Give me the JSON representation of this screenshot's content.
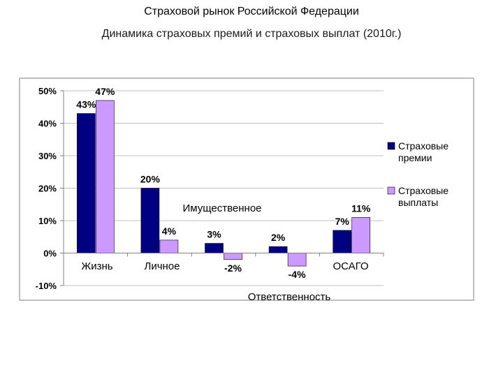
{
  "header": {
    "title": "Страховой рынок Российской Федерации",
    "subtitle": "Динамика страховых премий и страховых выплат (2010г.)"
  },
  "colors": {
    "premiums": "#000080",
    "payouts": "#cc99ff",
    "grid": "#c0c0c0",
    "axis": "#808080"
  },
  "chart_data": {
    "type": "bar",
    "categories": [
      "Жизнь",
      "Личное",
      "Имущественное",
      "Ответственность",
      "ОСАГО"
    ],
    "series": [
      {
        "name": "Страховые премии",
        "values": [
          43,
          20,
          3,
          2,
          7
        ],
        "labels": [
          "43%",
          "20%",
          "3%",
          "2%",
          "7%"
        ]
      },
      {
        "name": "Страховые выплаты",
        "values": [
          47,
          4,
          -2,
          -4,
          11
        ],
        "labels": [
          "47%",
          "4%",
          "-2%",
          "-4%",
          "11%"
        ]
      }
    ],
    "ylim": [
      -10,
      50
    ],
    "yticks": [
      50,
      40,
      30,
      20,
      10,
      0,
      -10
    ],
    "ytick_labels": [
      "50%",
      "40%",
      "30%",
      "20%",
      "10%",
      "0%",
      "-10%"
    ],
    "legend_position": "right",
    "grid": true
  }
}
